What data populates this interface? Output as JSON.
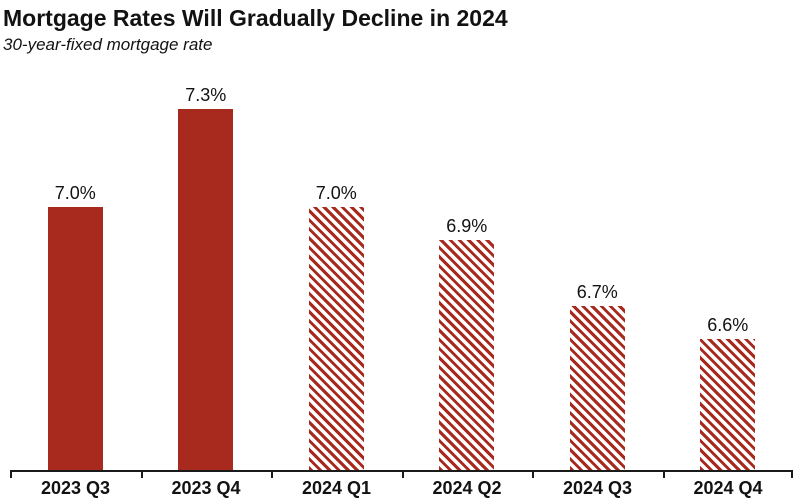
{
  "chart_data": {
    "type": "bar",
    "title": "Mortgage Rates Will Gradually Decline in 2024",
    "subtitle": "30-year-fixed mortgage rate",
    "categories": [
      "2023 Q3",
      "2023 Q4",
      "2024 Q1",
      "2024 Q2",
      "2024 Q3",
      "2024 Q4"
    ],
    "values": [
      7.0,
      7.3,
      7.0,
      6.9,
      6.7,
      6.6
    ],
    "value_labels": [
      "7.0%",
      "7.3%",
      "7.0%",
      "6.9%",
      "6.7%",
      "6.6%"
    ],
    "bar_styles": [
      "solid",
      "solid",
      "hatched",
      "hatched",
      "hatched",
      "hatched"
    ],
    "xlabel": "",
    "ylabel": "",
    "ylim": [
      6.2,
      7.3
    ],
    "grid": false,
    "legend": "none",
    "colors": {
      "bar": "#a82a1e",
      "hatch_background": "#ffffff",
      "axis": "#1a1a1a",
      "text": "#121212"
    }
  }
}
